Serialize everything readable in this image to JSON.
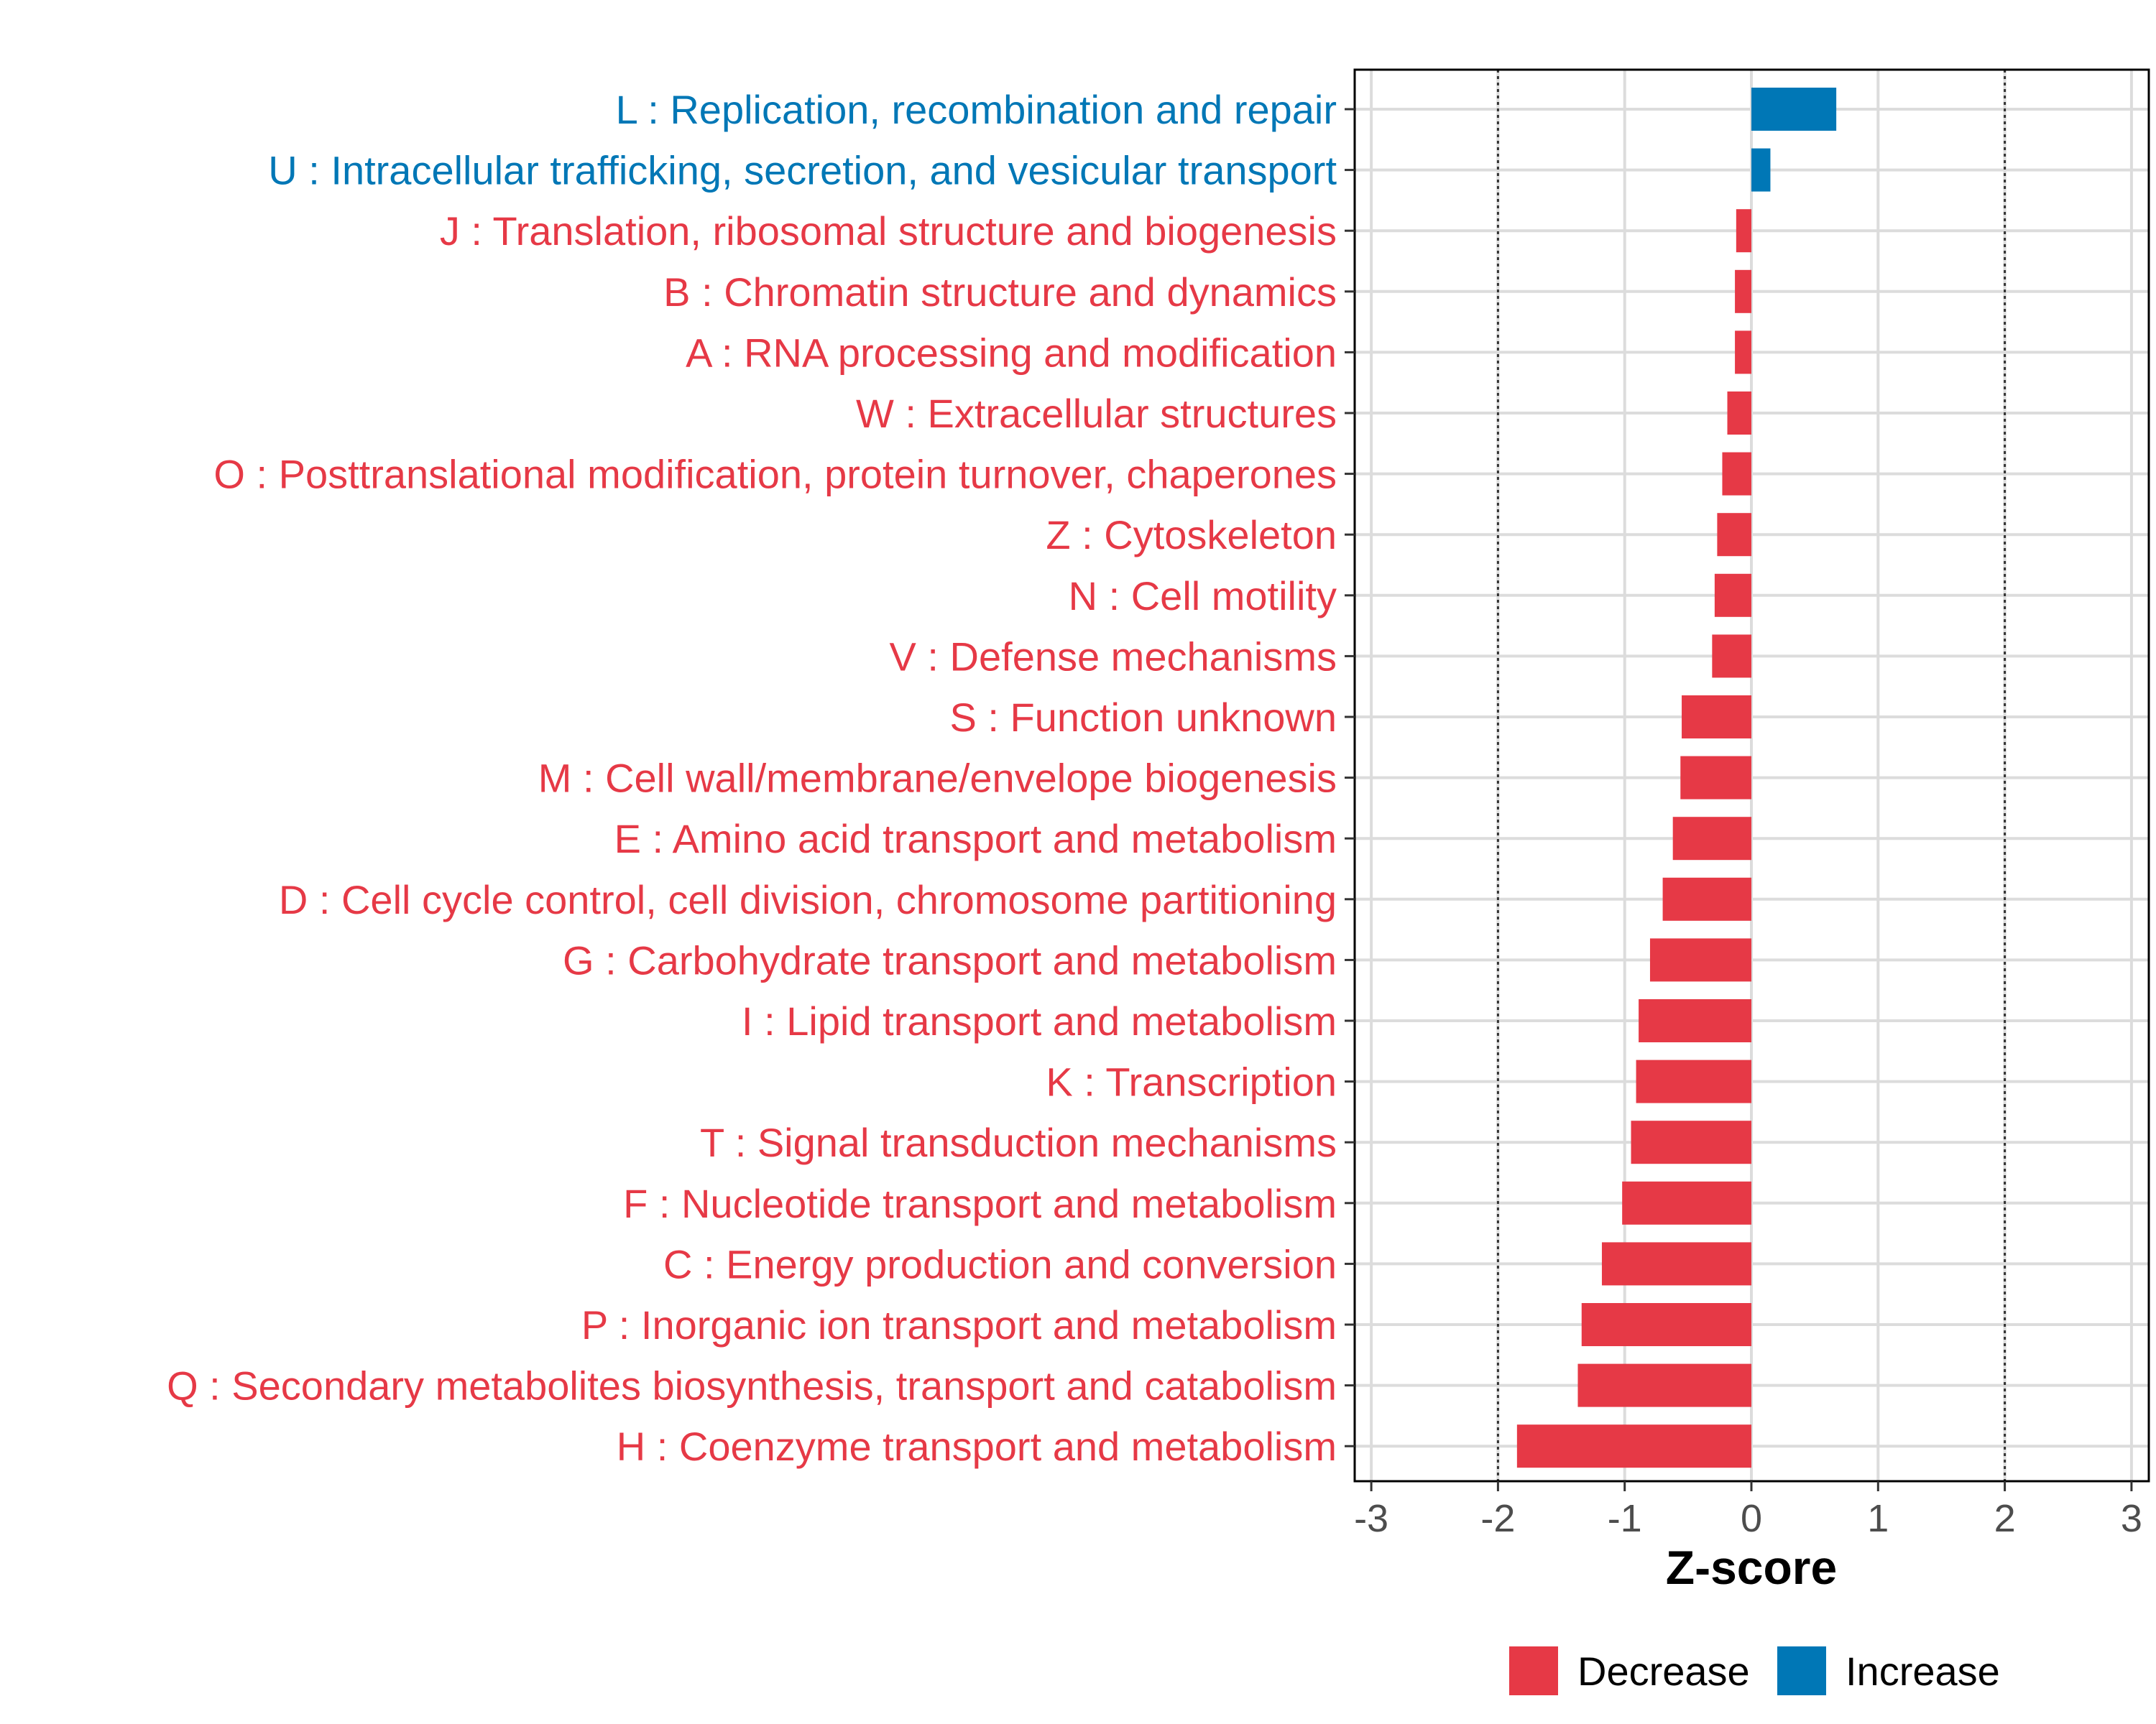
{
  "chart_data": {
    "type": "bar",
    "orientation": "horizontal",
    "title": "",
    "xlabel": "Z-score",
    "ylabel": "",
    "xlim": [
      -3.1,
      3.1
    ],
    "xticks": [
      -3,
      -2,
      -1,
      0,
      1,
      2,
      3
    ],
    "xtick_labels": [
      "-3",
      "-2",
      "-1",
      "0",
      "1",
      "2",
      "3"
    ],
    "reference_lines": [
      -2,
      2
    ],
    "grid": true,
    "legend_position": "bottom",
    "legend": [
      {
        "name": "Decrease",
        "color": "#E63946"
      },
      {
        "name": "Increase",
        "color": "#0077B6"
      }
    ],
    "categories": [
      "L : Replication, recombination and repair",
      "U : Intracellular trafficking, secretion, and vesicular transport",
      "J : Translation, ribosomal structure and biogenesis",
      "B : Chromatin structure and dynamics",
      "A : RNA processing and modification",
      "W : Extracellular structures",
      "O : Posttranslational modification, protein turnover, chaperones",
      "Z : Cytoskeleton",
      "N : Cell motility",
      "V : Defense mechanisms",
      "S : Function unknown",
      "M : Cell wall/membrane/envelope biogenesis",
      "E : Amino acid transport and metabolism",
      "D : Cell cycle control, cell division, chromosome partitioning",
      "G : Carbohydrate transport and metabolism",
      "I : Lipid transport and metabolism",
      "K : Transcription",
      "T : Signal transduction mechanisms",
      "F : Nucleotide transport and metabolism",
      "C : Energy production and conversion",
      "P : Inorganic ion transport and metabolism",
      "Q : Secondary metabolites biosynthesis, transport and catabolism",
      "H : Coenzyme transport and metabolism"
    ],
    "values": [
      0.67,
      0.15,
      -0.12,
      -0.13,
      -0.13,
      -0.19,
      -0.23,
      -0.27,
      -0.29,
      -0.31,
      -0.55,
      -0.56,
      -0.62,
      -0.7,
      -0.8,
      -0.89,
      -0.91,
      -0.95,
      -1.02,
      -1.18,
      -1.34,
      -1.37,
      -1.85
    ],
    "direction": [
      "Increase",
      "Increase",
      "Decrease",
      "Decrease",
      "Decrease",
      "Decrease",
      "Decrease",
      "Decrease",
      "Decrease",
      "Decrease",
      "Decrease",
      "Decrease",
      "Decrease",
      "Decrease",
      "Decrease",
      "Decrease",
      "Decrease",
      "Decrease",
      "Decrease",
      "Decrease",
      "Decrease",
      "Decrease",
      "Decrease"
    ]
  }
}
